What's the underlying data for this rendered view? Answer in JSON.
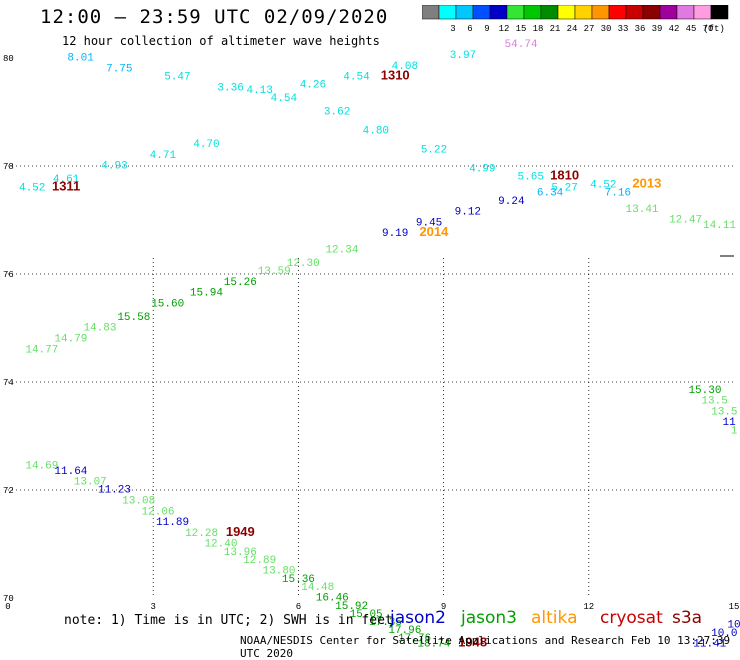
{
  "header": {
    "title": "12:00 — 23:59 UTC 02/09/2020",
    "subtitle": "12 hour collection of altimeter wave heights"
  },
  "legend": {
    "unit": "(ft)",
    "swatches": [
      {
        "color": "#7f7f7f",
        "label": ""
      },
      {
        "color": "#00ffff",
        "label": "3"
      },
      {
        "color": "#00c8ff",
        "label": "6"
      },
      {
        "color": "#0050ff",
        "label": "9"
      },
      {
        "color": "#0000c8",
        "label": "12"
      },
      {
        "color": "#33e633",
        "label": "15"
      },
      {
        "color": "#00c800",
        "label": "18"
      },
      {
        "color": "#008c00",
        "label": "21"
      },
      {
        "color": "#ffff00",
        "label": "24"
      },
      {
        "color": "#ffd200",
        "label": "27"
      },
      {
        "color": "#ff9600",
        "label": "30"
      },
      {
        "color": "#ff0000",
        "label": "33"
      },
      {
        "color": "#c80000",
        "label": "36"
      },
      {
        "color": "#8c0000",
        "label": "39"
      },
      {
        "color": "#a0009c",
        "label": "42"
      },
      {
        "color": "#e07ae0",
        "label": "45"
      },
      {
        "color": "#ff9de0",
        "label": "70"
      },
      {
        "color": "#000000",
        "label": ""
      }
    ]
  },
  "footer": {
    "note": "note: 1) Time is in UTC; 2) SWH is in feet",
    "satellites": [
      {
        "name": "jason2",
        "color": "#0000c8"
      },
      {
        "name": "jason3",
        "color": "#00a000"
      },
      {
        "name": "altika",
        "color": "#ff9600"
      },
      {
        "name": "cryosat",
        "color": "#c80000"
      },
      {
        "name": "s3a",
        "color": "#8c0000"
      }
    ],
    "credit": "NOAA/NESDIS Center for Satellite Applications and Research    Feb 10 13:27:39 UTC 2020"
  },
  "chart_data": {
    "type": "scatter",
    "title": "12:00 — 23:59 UTC 02/09/2020",
    "subtitle": "12 hour collection of altimeter wave heights",
    "x_ticks": [
      "0",
      "3",
      "6",
      "9",
      "12",
      "15"
    ],
    "y_ticks": [
      "70",
      "72",
      "74",
      "76",
      "78",
      "80"
    ],
    "xlim": [
      0,
      15
    ],
    "ylim": [
      70,
      80
    ],
    "grid": true,
    "points": [
      {
        "x": 0.5,
        "y": 77.55,
        "label": "4.52",
        "color": "#00e0e0",
        "kind": "swh"
      },
      {
        "x": 1.2,
        "y": 77.7,
        "label": "4.61",
        "color": "#00e0e0",
        "kind": "swh"
      },
      {
        "x": 1.2,
        "y": 77.55,
        "label": "1311",
        "color": "#8c0000",
        "kind": "time"
      },
      {
        "x": 1.5,
        "y": 79.95,
        "label": "8.01",
        "color": "#00b4ff",
        "kind": "swh"
      },
      {
        "x": 2.3,
        "y": 79.75,
        "label": "7.75",
        "color": "#00b4ff",
        "kind": "swh"
      },
      {
        "x": 2.2,
        "y": 77.95,
        "label": "4.93",
        "color": "#00e0e0",
        "kind": "swh"
      },
      {
        "x": 3.2,
        "y": 78.15,
        "label": "4.71",
        "color": "#00e0e0",
        "kind": "swh"
      },
      {
        "x": 3.5,
        "y": 79.6,
        "label": "5.47",
        "color": "#00e0e0",
        "kind": "swh"
      },
      {
        "x": 4.1,
        "y": 78.35,
        "label": "4.70",
        "color": "#00e0e0",
        "kind": "swh"
      },
      {
        "x": 4.6,
        "y": 79.4,
        "label": "3.36",
        "color": "#00e0e0",
        "kind": "swh"
      },
      {
        "x": 5.2,
        "y": 79.35,
        "label": "4.13",
        "color": "#00e0e0",
        "kind": "swh"
      },
      {
        "x": 5.7,
        "y": 79.2,
        "label": "4.54",
        "color": "#00e0e0",
        "kind": "swh"
      },
      {
        "x": 6.3,
        "y": 79.45,
        "label": "4.26",
        "color": "#00e0e0",
        "kind": "swh"
      },
      {
        "x": 6.8,
        "y": 78.95,
        "label": "3.62",
        "color": "#00e0e0",
        "kind": "swh"
      },
      {
        "x": 7.2,
        "y": 79.6,
        "label": "4.54",
        "color": "#00e0e0",
        "kind": "swh"
      },
      {
        "x": 8.0,
        "y": 79.6,
        "label": "1310",
        "color": "#8c0000",
        "kind": "time"
      },
      {
        "x": 8.2,
        "y": 79.8,
        "label": "4.08",
        "color": "#00e0e0",
        "kind": "swh"
      },
      {
        "x": 7.6,
        "y": 78.6,
        "label": "4.80",
        "color": "#00e0e0",
        "kind": "swh"
      },
      {
        "x": 8.8,
        "y": 78.25,
        "label": "5.22",
        "color": "#00e0e0",
        "kind": "swh"
      },
      {
        "x": 9.4,
        "y": 80.0,
        "label": "3.97",
        "color": "#00e0e0",
        "kind": "swh"
      },
      {
        "x": 9.8,
        "y": 77.9,
        "label": "4.99",
        "color": "#00e0e0",
        "kind": "swh"
      },
      {
        "x": 10.6,
        "y": 80.2,
        "label": "54.74",
        "color": "#e07ae0",
        "kind": "swh"
      },
      {
        "x": 10.8,
        "y": 77.75,
        "label": "5.65",
        "color": "#00e0e0",
        "kind": "swh"
      },
      {
        "x": 11.5,
        "y": 77.75,
        "label": "1810",
        "color": "#8c0000",
        "kind": "time"
      },
      {
        "x": 11.5,
        "y": 77.55,
        "label": "5.27",
        "color": "#00e0e0",
        "kind": "swh"
      },
      {
        "x": 11.2,
        "y": 77.45,
        "label": "6.34",
        "color": "#00b4ff",
        "kind": "swh"
      },
      {
        "x": 12.3,
        "y": 77.6,
        "label": "4.52",
        "color": "#00e0e0",
        "kind": "swh"
      },
      {
        "x": 12.6,
        "y": 77.45,
        "label": "7.16",
        "color": "#00b4ff",
        "kind": "swh"
      },
      {
        "x": 13.2,
        "y": 77.6,
        "label": "2013",
        "color": "#ff9600",
        "kind": "time"
      },
      {
        "x": 13.1,
        "y": 77.15,
        "label": "13.41",
        "color": "#66e066",
        "kind": "swh"
      },
      {
        "x": 14.0,
        "y": 76.95,
        "label": "12.47",
        "color": "#66e066",
        "kind": "swh"
      },
      {
        "x": 14.7,
        "y": 76.85,
        "label": "14.11",
        "color": "#66e066",
        "kind": "swh"
      },
      {
        "x": 8.0,
        "y": 76.7,
        "label": "9.19",
        "color": "#0000c8",
        "kind": "swh"
      },
      {
        "x": 8.7,
        "y": 76.9,
        "label": "9.45",
        "color": "#0000c8",
        "kind": "swh"
      },
      {
        "x": 8.8,
        "y": 76.7,
        "label": "2014",
        "color": "#ff9600",
        "kind": "time"
      },
      {
        "x": 9.5,
        "y": 77.1,
        "label": "9.12",
        "color": "#0000c8",
        "kind": "swh"
      },
      {
        "x": 10.4,
        "y": 77.3,
        "label": "9.24",
        "color": "#0000c8",
        "kind": "swh"
      },
      {
        "x": 6.9,
        "y": 76.4,
        "label": "12.34",
        "color": "#66e066",
        "kind": "swh"
      },
      {
        "x": 6.1,
        "y": 76.15,
        "label": "12.30",
        "color": "#66e066",
        "kind": "swh"
      },
      {
        "x": 5.5,
        "y": 76.0,
        "label": "13.59",
        "color": "#66e066",
        "kind": "swh"
      },
      {
        "x": 4.8,
        "y": 75.8,
        "label": "15.26",
        "color": "#00a000",
        "kind": "swh"
      },
      {
        "x": 4.1,
        "y": 75.6,
        "label": "15.94",
        "color": "#00a000",
        "kind": "swh"
      },
      {
        "x": 3.3,
        "y": 75.4,
        "label": "15.60",
        "color": "#00a000",
        "kind": "swh"
      },
      {
        "x": 2.6,
        "y": 75.15,
        "label": "15.58",
        "color": "#00a000",
        "kind": "swh"
      },
      {
        "x": 1.9,
        "y": 74.95,
        "label": "14.83",
        "color": "#66e066",
        "kind": "swh"
      },
      {
        "x": 1.3,
        "y": 74.75,
        "label": "14.79",
        "color": "#66e066",
        "kind": "swh"
      },
      {
        "x": 0.7,
        "y": 74.55,
        "label": "14.77",
        "color": "#66e066",
        "kind": "swh"
      },
      {
        "x": 14.4,
        "y": 73.8,
        "label": "15.30",
        "color": "#00a000",
        "kind": "swh"
      },
      {
        "x": 14.6,
        "y": 73.6,
        "label": "13.5",
        "color": "#66e066",
        "kind": "swh"
      },
      {
        "x": 14.8,
        "y": 73.4,
        "label": "13.5",
        "color": "#66e066",
        "kind": "swh"
      },
      {
        "x": 14.9,
        "y": 73.2,
        "label": "11",
        "color": "#0000c8",
        "kind": "swh"
      },
      {
        "x": 15.0,
        "y": 73.05,
        "label": "1",
        "color": "#66e066",
        "kind": "swh"
      },
      {
        "x": 0.7,
        "y": 72.4,
        "label": "14.69",
        "color": "#66e066",
        "kind": "swh"
      },
      {
        "x": 1.3,
        "y": 72.3,
        "label": "11.64",
        "color": "#0000c8",
        "kind": "swh"
      },
      {
        "x": 1.7,
        "y": 72.1,
        "label": "13.07",
        "color": "#66e066",
        "kind": "swh"
      },
      {
        "x": 2.2,
        "y": 71.95,
        "label": "11.23",
        "color": "#0000c8",
        "kind": "swh"
      },
      {
        "x": 2.7,
        "y": 71.75,
        "label": "13.08",
        "color": "#66e066",
        "kind": "swh"
      },
      {
        "x": 3.1,
        "y": 71.55,
        "label": "12.06",
        "color": "#66e066",
        "kind": "swh"
      },
      {
        "x": 3.4,
        "y": 71.35,
        "label": "11.89",
        "color": "#0000c8",
        "kind": "swh"
      },
      {
        "x": 4.0,
        "y": 71.15,
        "label": "12.28",
        "color": "#66e066",
        "kind": "swh"
      },
      {
        "x": 4.8,
        "y": 71.15,
        "label": "1949",
        "color": "#8c0000",
        "kind": "time"
      },
      {
        "x": 4.4,
        "y": 70.95,
        "label": "12.40",
        "color": "#66e066",
        "kind": "swh"
      },
      {
        "x": 4.8,
        "y": 70.8,
        "label": "13.96",
        "color": "#66e066",
        "kind": "swh"
      },
      {
        "x": 5.2,
        "y": 70.65,
        "label": "12.89",
        "color": "#66e066",
        "kind": "swh"
      },
      {
        "x": 5.6,
        "y": 70.45,
        "label": "13.80",
        "color": "#66e066",
        "kind": "swh"
      },
      {
        "x": 6.0,
        "y": 70.3,
        "label": "15.36",
        "color": "#00a000",
        "kind": "swh"
      },
      {
        "x": 6.4,
        "y": 70.15,
        "label": "14.48",
        "color": "#66e066",
        "kind": "swh"
      },
      {
        "x": 6.7,
        "y": 69.95,
        "label": "16.46",
        "color": "#00a000",
        "kind": "swh"
      },
      {
        "x": 7.1,
        "y": 69.8,
        "label": "15.92",
        "color": "#00a000",
        "kind": "swh"
      },
      {
        "x": 7.4,
        "y": 69.65,
        "label": "15.05",
        "color": "#00a000",
        "kind": "swh"
      },
      {
        "x": 7.8,
        "y": 69.5,
        "label": "17.35",
        "color": "#00a000",
        "kind": "swh"
      },
      {
        "x": 8.2,
        "y": 69.35,
        "label": "17.96",
        "color": "#00a000",
        "kind": "swh"
      },
      {
        "x": 8.4,
        "y": 69.2,
        "label": "17.76",
        "color": "#00a000",
        "kind": "swh"
      },
      {
        "x": 8.8,
        "y": 69.1,
        "label": "18.74",
        "color": "#00a000",
        "kind": "swh"
      },
      {
        "x": 9.6,
        "y": 69.1,
        "label": "1948",
        "color": "#8c0000",
        "kind": "time"
      },
      {
        "x": 14.5,
        "y": 69.1,
        "label": "11.41",
        "color": "#0000c8",
        "kind": "swh"
      },
      {
        "x": 14.8,
        "y": 69.3,
        "label": "10.0",
        "color": "#0000c8",
        "kind": "swh"
      },
      {
        "x": 15.0,
        "y": 69.45,
        "label": "10",
        "color": "#0000c8",
        "kind": "swh"
      }
    ]
  }
}
